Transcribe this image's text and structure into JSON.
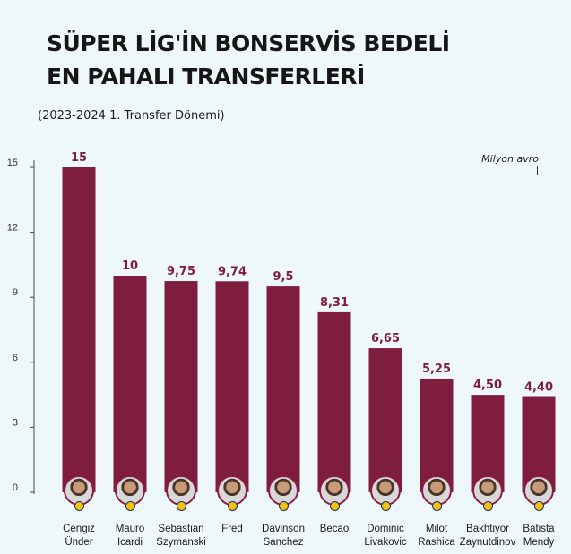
{
  "title_lines": [
    "SÜPER LİG'İN BONSERVİS BEDELİ",
    "EN PAHALI TRANSFERLERİ"
  ],
  "subtitle": "(2023-2024 1. Transfer Dönemi)",
  "unit": "Milyon avro",
  "colors": {
    "bar": "#7f1d3f",
    "value_label": "#7f1d3f",
    "axis": "#444444",
    "background": "#eef7fa"
  },
  "chart_data": {
    "type": "bar",
    "title": "SÜPER LİG'İN BONSERVİS BEDELİ EN PAHALI TRANSFERLERİ",
    "subtitle": "(2023-2024 1. Transfer Dönemi)",
    "ylabel": "Milyon avro",
    "ylim": [
      0,
      15
    ],
    "yticks": [
      0,
      3,
      6,
      9,
      12,
      15
    ],
    "grid": false,
    "categories": [
      [
        "Cengiz",
        "Ünder"
      ],
      [
        "Mauro",
        "Icardi"
      ],
      [
        "Sebastian",
        "Szymanski"
      ],
      [
        "Fred"
      ],
      [
        "Davinson",
        "Sanchez"
      ],
      [
        "Becao"
      ],
      [
        "Dominic",
        "Livakovic"
      ],
      [
        "Milot",
        "Rashica"
      ],
      [
        "Bakhtiyor",
        "Zaynutdinov"
      ],
      [
        "Batista",
        "Mendy"
      ]
    ],
    "values": [
      15,
      10,
      9.75,
      9.74,
      9.5,
      8.31,
      6.65,
      5.25,
      4.5,
      4.4
    ],
    "value_labels": [
      "15",
      "10",
      "9,75",
      "9,74",
      "9,5",
      "8,31",
      "6,65",
      "5,25",
      "4,50",
      "4,40"
    ]
  }
}
